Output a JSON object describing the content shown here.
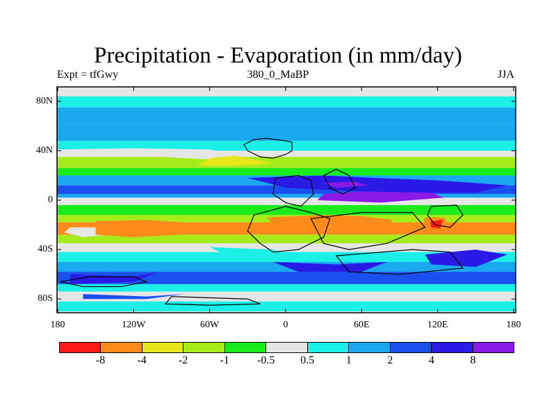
{
  "title": "Precipitation - Evaporation (in mm/day)",
  "subtitle_left": "Expt = tfGwy",
  "subtitle_center": "380_0_MaBP",
  "subtitle_right": "JJA",
  "map": {
    "projection": "cylindrical-equidistant",
    "lon_range": [
      -180,
      180
    ],
    "lat_range": [
      -90,
      90
    ],
    "y_ticks": [
      {
        "value": 80,
        "label": "80N"
      },
      {
        "value": 40,
        "label": "40N"
      },
      {
        "value": 0,
        "label": "0"
      },
      {
        "value": -40,
        "label": "40S"
      },
      {
        "value": -80,
        "label": "80S"
      }
    ],
    "x_ticks": [
      {
        "value": -180,
        "label": "180"
      },
      {
        "value": -120,
        "label": "120W"
      },
      {
        "value": -60,
        "label": "60W"
      },
      {
        "value": 0,
        "label": "0"
      },
      {
        "value": 60,
        "label": "60E"
      },
      {
        "value": 120,
        "label": "120E"
      },
      {
        "value": 180,
        "label": "180"
      }
    ],
    "background_class": "0.5"
  },
  "colorbar": {
    "colors": [
      "#ff1a1a",
      "#ff8c1a",
      "#e6e61a",
      "#a6eb1a",
      "#1aeb1a",
      "#e6e6e6",
      "#1af0e6",
      "#1aa8f0",
      "#1a50f0",
      "#2a1ae6",
      "#8c1ae6"
    ],
    "labels": [
      "-8",
      "-4",
      "-2",
      "-1",
      "-0.5",
      "0.5",
      "1",
      "2",
      "4",
      "8"
    ]
  }
}
